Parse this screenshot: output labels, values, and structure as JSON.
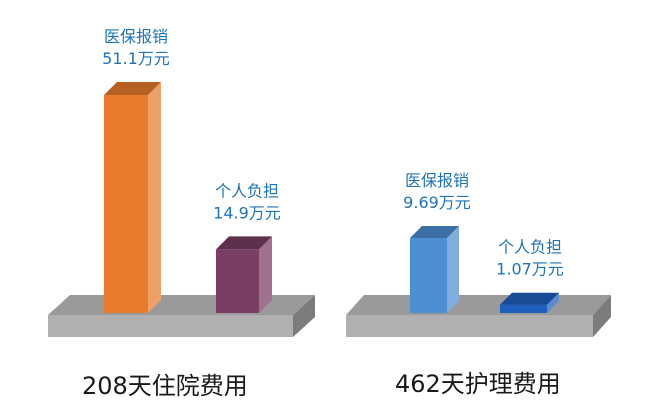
{
  "chart_data": [
    {
      "type": "bar",
      "caption": "208天住院费用",
      "unit": "万元",
      "bars": [
        {
          "category": "医保报销",
          "value": 51.1,
          "value_label": "51.1万元",
          "color": "#e97b2d"
        },
        {
          "category": "个人负担",
          "value": 14.9,
          "value_label": "14.9万元",
          "color": "#7a3d63"
        }
      ]
    },
    {
      "type": "bar",
      "caption": "462天护理费用",
      "unit": "万元",
      "bars": [
        {
          "category": "医保报销",
          "value": 9.69,
          "value_label": "9.69万元",
          "color": "#4d8fd3"
        },
        {
          "category": "个人负担",
          "value": 1.07,
          "value_label": "1.07万元",
          "color": "#1f5fbf"
        }
      ]
    }
  ],
  "colors": {
    "label_text": "#1f73b7",
    "platform_top": "#9a9a9a",
    "platform_front": "#b0b0b0",
    "platform_side": "#7c7c7c"
  }
}
